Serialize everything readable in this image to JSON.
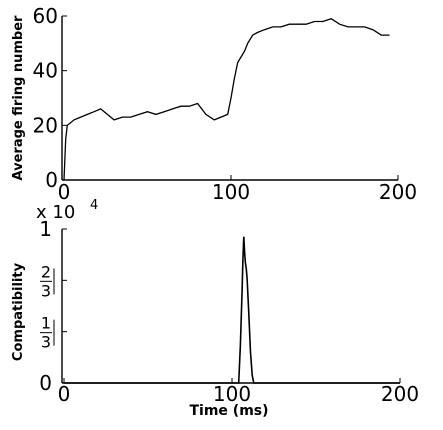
{
  "chart_data": [
    {
      "type": "line",
      "ylabel": "Average firing number",
      "xlim": [
        0,
        200
      ],
      "ylim": [
        0,
        60
      ],
      "xticks": [
        "0",
        "100",
        "200"
      ],
      "yticks": [
        "0",
        "20",
        "40",
        "60"
      ],
      "series": [
        {
          "x": [
            0,
            1,
            2,
            4,
            6,
            10,
            14,
            18,
            22,
            26,
            30,
            35,
            40,
            45,
            50,
            55,
            60,
            65,
            70,
            75,
            80,
            85,
            90,
            94,
            98,
            100,
            102,
            104,
            106,
            108,
            110,
            113,
            116,
            120,
            125,
            130,
            135,
            140,
            145,
            150,
            155,
            160,
            165,
            170,
            175,
            180,
            185,
            190,
            195
          ],
          "y": [
            0,
            15,
            20,
            21,
            22,
            23,
            24,
            25,
            26,
            24,
            22,
            23,
            23,
            24,
            25,
            24,
            25,
            26,
            27,
            27,
            28,
            24,
            22,
            23,
            24,
            30,
            37,
            43,
            45,
            47,
            50,
            53,
            54,
            55,
            56,
            56,
            57,
            57,
            57,
            58,
            58,
            59,
            57,
            56,
            56,
            56,
            55,
            53,
            53
          ]
        }
      ]
    },
    {
      "type": "line",
      "xlabel": "Time (ms)",
      "ylabel": "Compatibility",
      "multiplier": "x 10",
      "multiplier_exp": "4",
      "xlim": [
        0,
        200
      ],
      "ylim": [
        0,
        1
      ],
      "xticks": [
        "0",
        "100",
        "200"
      ],
      "yticks": [
        {
          "label": "0",
          "value": 0
        },
        {
          "num": "1",
          "den": "3",
          "value": 0.3333
        },
        {
          "num": "2",
          "den": "3",
          "value": 0.6667
        },
        {
          "label": "1",
          "value": 1
        }
      ],
      "series": [
        {
          "x": [
            0,
            104,
            105,
            106,
            106.5,
            107,
            107.5,
            108,
            108.5,
            109,
            110,
            111,
            112,
            113,
            200
          ],
          "y": [
            0,
            0,
            0.25,
            0.6,
            0.8,
            0.95,
            0.85,
            0.78,
            0.74,
            0.68,
            0.45,
            0.2,
            0.05,
            0,
            0
          ]
        }
      ]
    }
  ]
}
